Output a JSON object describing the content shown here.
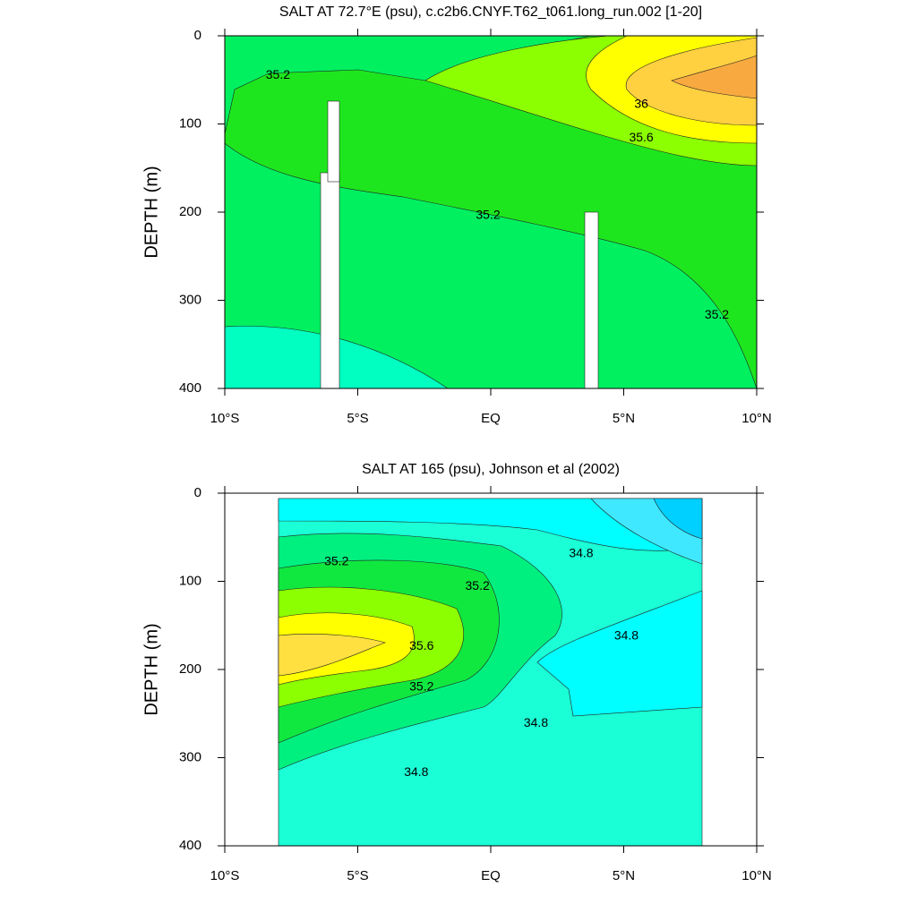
{
  "chart_data": [
    {
      "type": "contour",
      "title": "SALT AT  72.7°E (psu), c.c2b6.CNYF.T62_t061.long_run.002 [1-20]",
      "y_label": "DEPTH (m)",
      "xlim": [
        -10,
        10
      ],
      "ylim": [
        0,
        400
      ],
      "y_inverted": true,
      "xticks": [
        {
          "value": -10,
          "label": "10°S"
        },
        {
          "value": -5,
          "label": "5°S"
        },
        {
          "value": 0,
          "label": "EQ"
        },
        {
          "value": 5,
          "label": "5°N"
        },
        {
          "value": 10,
          "label": "10°N"
        }
      ],
      "yticks": [
        0,
        100,
        200,
        300,
        400
      ],
      "contour_labels": [
        {
          "value": 35.2,
          "x": -8.0,
          "y": 45
        },
        {
          "value": 36,
          "x": 5.66,
          "y": 78
        },
        {
          "value": 35.6,
          "x": 5.66,
          "y": 116
        },
        {
          "value": 35.2,
          "x": -0.1,
          "y": 204
        },
        {
          "value": 35.2,
          "x": 8.5,
          "y": 317
        }
      ]
    },
    {
      "type": "contour",
      "title": "SALT AT 165 (psu), Johnson et al (2002)",
      "y_label": "DEPTH (m)",
      "xlim": [
        -10,
        10
      ],
      "ylim": [
        0,
        400
      ],
      "y_inverted": true,
      "xticks": [
        {
          "value": -10,
          "label": "10°S"
        },
        {
          "value": -5,
          "label": "5°S"
        },
        {
          "value": 0,
          "label": "EQ"
        },
        {
          "value": 5,
          "label": "5°N"
        },
        {
          "value": 10,
          "label": "10°N"
        }
      ],
      "yticks": [
        0,
        100,
        200,
        300,
        400
      ],
      "contour_labels": [
        {
          "value": 35.2,
          "x": -5.8,
          "y": 78
        },
        {
          "value": 35.2,
          "x": -0.5,
          "y": 106
        },
        {
          "value": 34.8,
          "x": 3.4,
          "y": 69
        },
        {
          "value": 35.6,
          "x": -2.6,
          "y": 174
        },
        {
          "value": 34.8,
          "x": 5.1,
          "y": 162
        },
        {
          "value": 35.2,
          "x": -2.6,
          "y": 220
        },
        {
          "value": 34.8,
          "x": 1.7,
          "y": 261
        },
        {
          "value": 34.8,
          "x": -2.8,
          "y": 317
        }
      ]
    }
  ]
}
